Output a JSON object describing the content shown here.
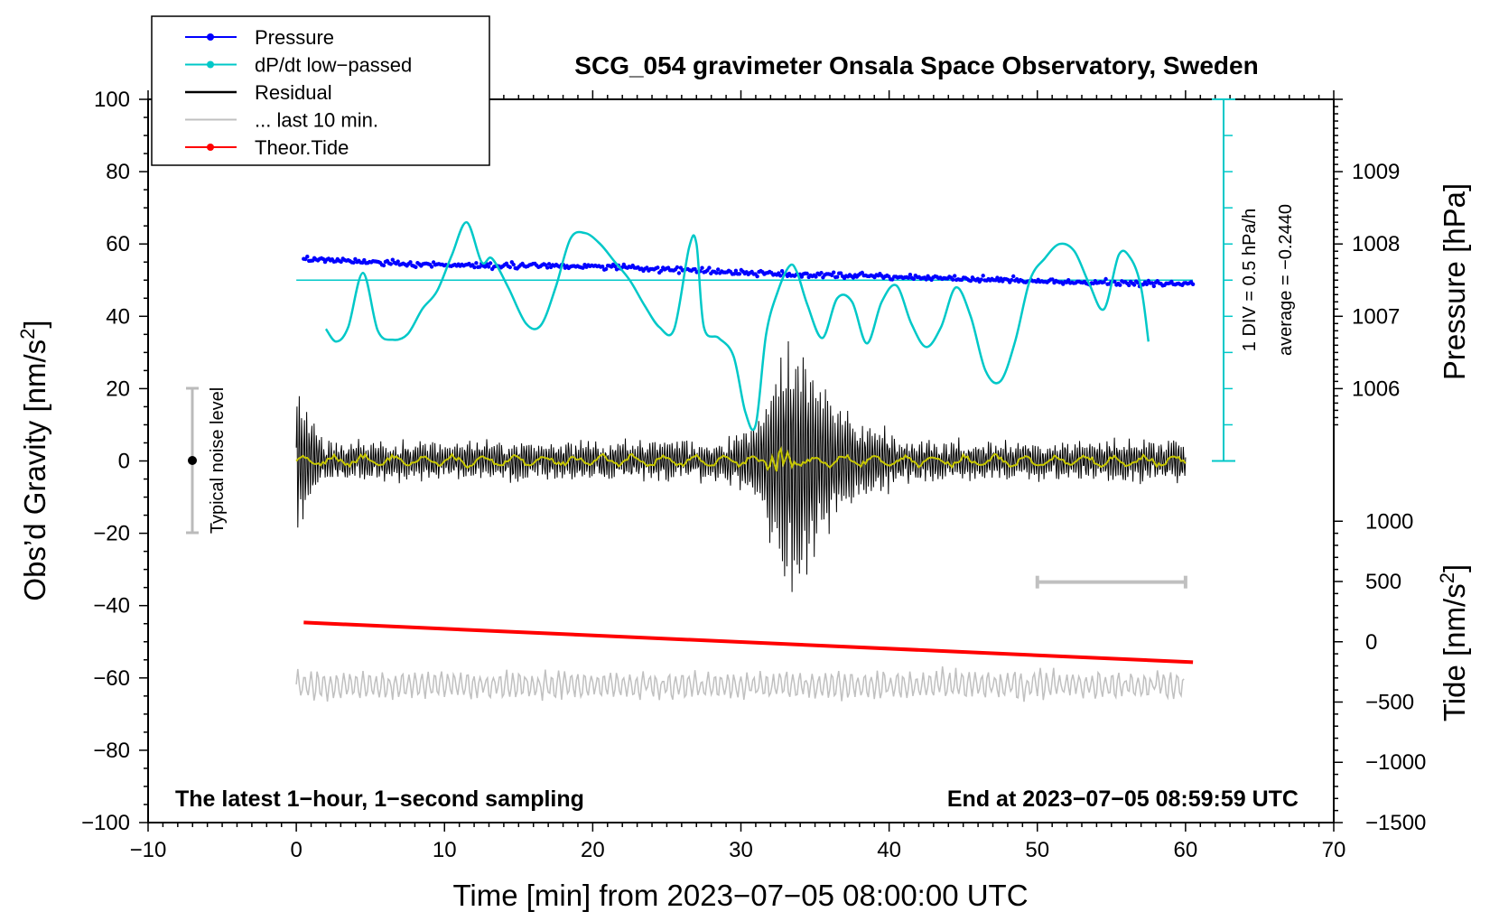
{
  "chart_data": {
    "type": "line",
    "title": "SCG_054 gravimeter Onsala Space Observatory, Sweden",
    "xlabel": "Time [min] from 2023−07−05 08:00:00 UTC",
    "ylabel_main": "Obs’d Gravity [nm/s",
    "ylabel_sup": "2",
    "ylabel_close": "]",
    "y2label_pressure": "Pressure [hPa]",
    "y2label_tide": "Tide [nm/s",
    "y2label_tide_sup": "2",
    "y2label_tide_close": "]",
    "xlim": [
      -10,
      70
    ],
    "ylim": [
      -100,
      100
    ],
    "x_ticks": [
      -10,
      0,
      10,
      20,
      30,
      40,
      50,
      60,
      70
    ],
    "x_tick_labels": [
      "−10",
      "0",
      "10",
      "20",
      "30",
      "40",
      "50",
      "60",
      "70"
    ],
    "y_ticks": [
      -100,
      -80,
      -60,
      -40,
      -20,
      0,
      20,
      40,
      60,
      80,
      100
    ],
    "y_tick_labels": [
      "−100",
      "−80",
      "−60",
      "−40",
      "−20",
      "0",
      "20",
      "40",
      "60",
      "80",
      "100"
    ],
    "pressure_axis": {
      "ticks": [
        1006,
        1007,
        1008,
        1009
      ],
      "tick_labels": [
        "1006",
        "1007",
        "1008",
        "1009"
      ],
      "gravity_equiv": [
        20,
        40,
        60,
        80
      ]
    },
    "tide_axis": {
      "ticks": [
        -1500,
        -1000,
        -500,
        0,
        500,
        1000
      ],
      "tick_labels": [
        "−1500",
        "−1000",
        "−500",
        "0",
        "500",
        "1000"
      ],
      "gravity_equiv": [
        -100,
        -83.33,
        -66.67,
        -50,
        -33.33,
        -16.67
      ]
    },
    "legend": [
      {
        "label": "Pressure",
        "color": "#0000ff",
        "marker": true
      },
      {
        "label": "dP/dt low−passed",
        "color": "#00c8c8",
        "marker": true
      },
      {
        "label": "Residual",
        "color": "#000000",
        "marker": false
      },
      {
        "label": "... last 10 min.",
        "color": "#c0c0c0",
        "marker": false
      },
      {
        "label": "Theor.Tide",
        "color": "#ff0000",
        "marker": true
      }
    ],
    "series": [
      {
        "name": "dP/dt low-passed",
        "color": "#00c8c8",
        "x": [
          2,
          2.7,
          3.5,
          4.5,
          5.5,
          6.5,
          7.5,
          8.5,
          9.5,
          10.5,
          11.5,
          12.5,
          13.2,
          14.3,
          15.5,
          16.5,
          17.5,
          18.5,
          19.5,
          20.5,
          21.5,
          22.5,
          23.5,
          24.5,
          25.5,
          26.5,
          27,
          27.5,
          28.5,
          29.5,
          30.3,
          31,
          31.7,
          32.5,
          33.3,
          33.8,
          34.5,
          35.5,
          36.5,
          37.5,
          38.5,
          39.5,
          40.5,
          41.5,
          42.5,
          43.5,
          44.5,
          45.5,
          46.5,
          47.5,
          48.5,
          49.5,
          50.5,
          51.5,
          52.5,
          53.5,
          54.5,
          55.5,
          56.3,
          57,
          57.5
        ],
        "y": [
          36.5,
          33,
          37,
          52,
          36,
          33.5,
          35,
          42,
          47,
          57,
          66,
          55,
          56,
          48,
          38,
          37.5,
          48,
          61.5,
          63,
          60,
          55,
          50,
          43,
          37,
          36.5,
          59,
          60,
          37,
          34,
          29,
          13.5,
          10,
          35,
          47,
          54,
          52,
          43,
          34,
          45,
          44,
          32.5,
          44,
          48.5,
          38,
          31.5,
          37,
          48,
          40,
          25,
          22,
          33,
          50,
          56,
          60,
          58,
          49,
          42,
          57,
          56,
          48,
          33
        ]
      },
      {
        "name": "Pressure",
        "color": "#0000ff",
        "x": [
          0.5,
          10,
          20,
          30,
          40,
          50,
          60.5
        ],
        "hpa": [
          1007.8,
          1007.7,
          1007.7,
          1007.6,
          1007.55,
          1007.48,
          1007.45
        ]
      },
      {
        "name": "Theor.Tide",
        "color": "#ff0000",
        "x": [
          0.5,
          60.5
        ],
        "nm_s2": [
          160,
          -170
        ]
      }
    ],
    "pressure_reference_line_y": 50,
    "dpdt_scale_label": "1 DIV = 0.5 hPa/h",
    "dpdt_average_label": "average = −0.2440",
    "noise_label": "Typical noise level",
    "noise_range": [
      -20,
      20
    ],
    "last_10min_range": [
      50,
      60
    ],
    "last_10min_y": -33.5,
    "footer_left": "The latest 1−hour, 1−second sampling",
    "footer_right": "End at 2023−07−05 08:59:59 UTC"
  }
}
